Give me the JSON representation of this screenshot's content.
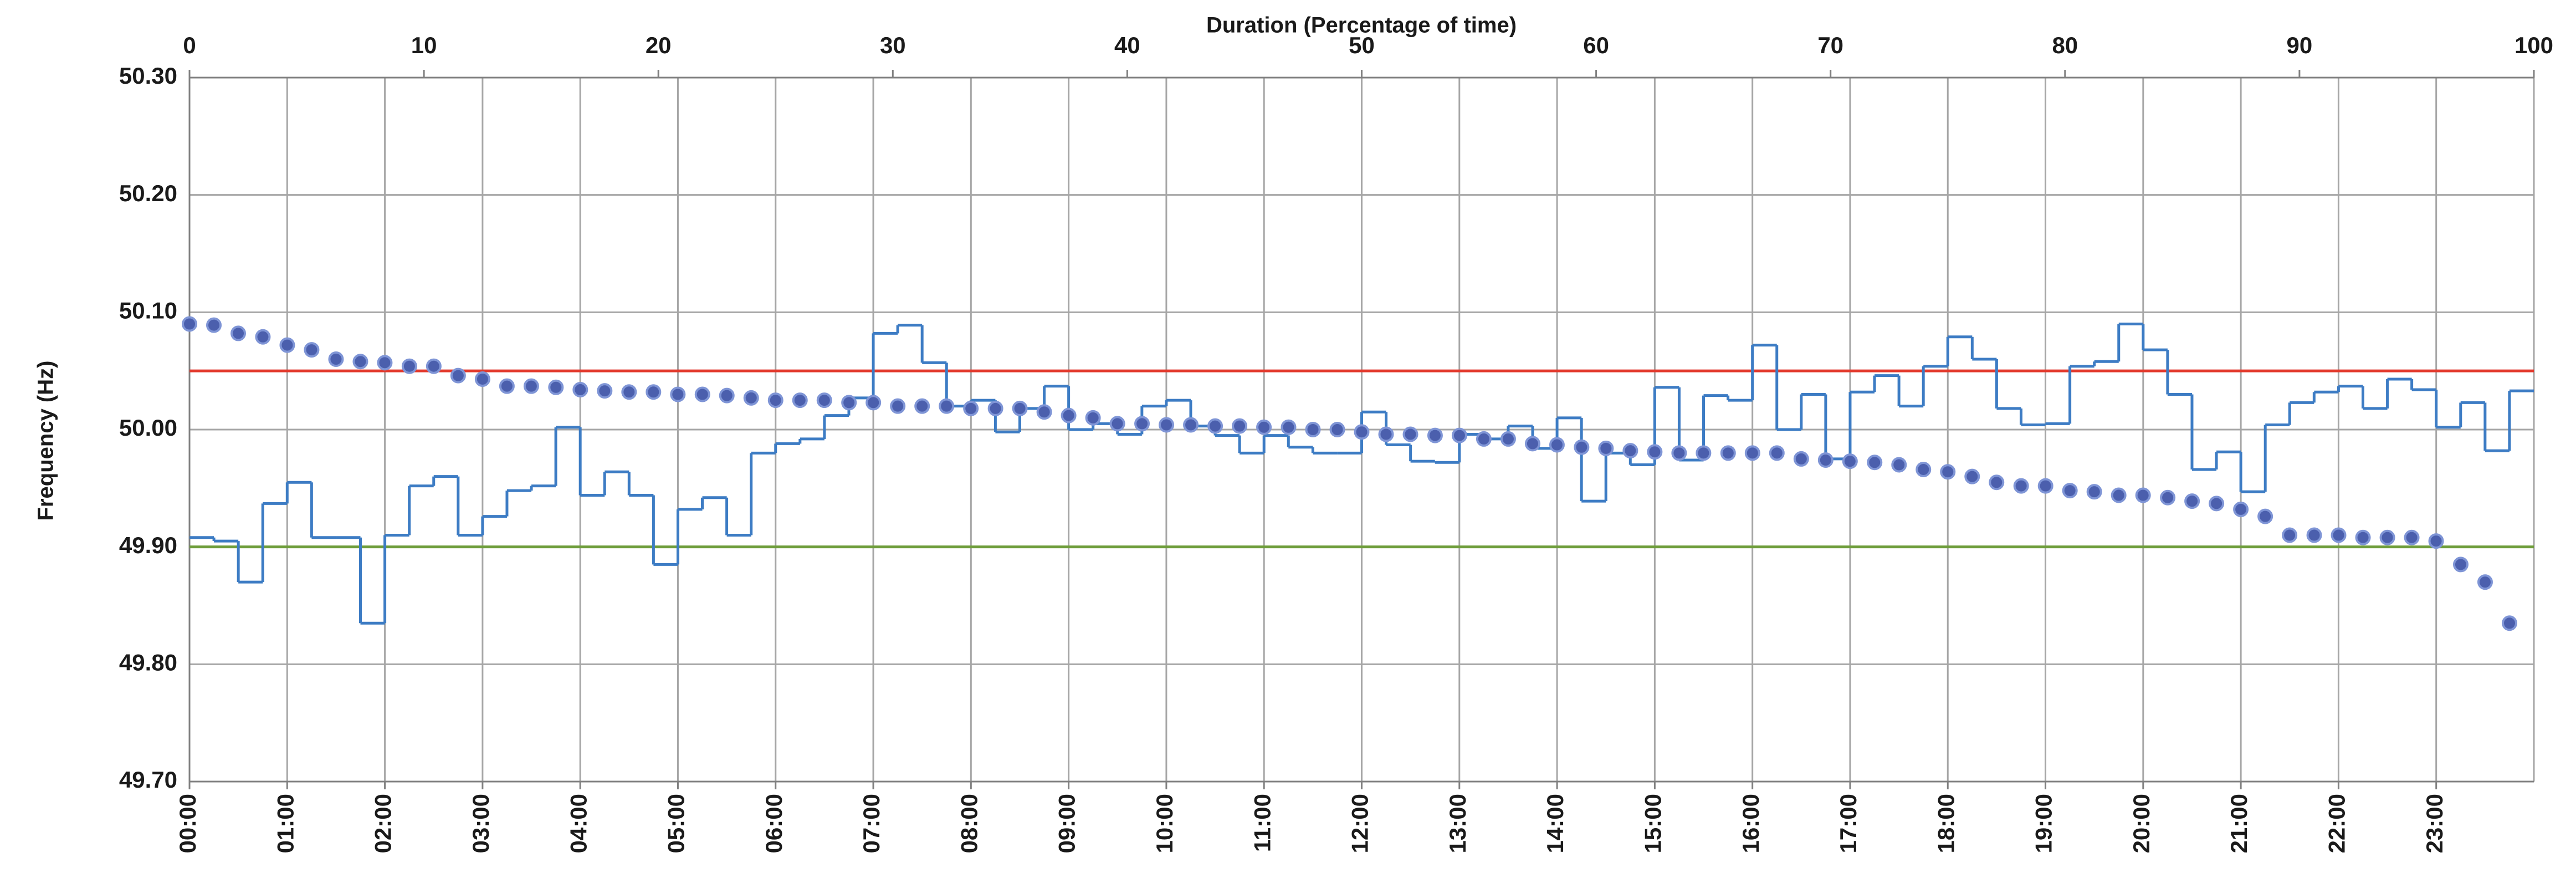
{
  "chart_data": [
    {
      "type": "line",
      "step": true,
      "ylabel": "Frequency (Hz)",
      "categories": [
        "00:00",
        null,
        null,
        null,
        "01:00",
        null,
        null,
        null,
        "02:00",
        null,
        null,
        null,
        "03:00",
        null,
        null,
        null,
        "04:00",
        null,
        null,
        null,
        "05:00",
        null,
        null,
        null,
        "06:00",
        null,
        null,
        null,
        "07:00",
        null,
        null,
        null,
        "08:00",
        null,
        null,
        null,
        "09:00",
        null,
        null,
        null,
        "10:00",
        null,
        null,
        null,
        "11:00",
        null,
        null,
        null,
        "12:00",
        null,
        null,
        null,
        "13:00",
        null,
        null,
        null,
        "14:00",
        null,
        null,
        null,
        "15:00",
        null,
        null,
        null,
        "16:00",
        null,
        null,
        null,
        "17:00",
        null,
        null,
        null,
        "18:00",
        null,
        null,
        null,
        "19:00",
        null,
        null,
        null,
        "20:00",
        null,
        null,
        null,
        "21:00",
        null,
        null,
        null,
        "22:00",
        null,
        null,
        null,
        "23:00",
        null,
        null,
        null
      ],
      "values": [
        49.908,
        49.905,
        49.87,
        49.937,
        49.955,
        49.908,
        49.908,
        49.835,
        49.91,
        49.952,
        49.96,
        49.91,
        49.926,
        49.948,
        49.952,
        50.002,
        49.944,
        49.964,
        49.944,
        49.885,
        49.932,
        49.942,
        49.91,
        49.98,
        49.988,
        49.992,
        50.012,
        50.027,
        50.082,
        50.089,
        50.057,
        50.02,
        50.025,
        49.998,
        50.018,
        50.037,
        50.0,
        50.005,
        49.996,
        50.02,
        50.025,
        50.003,
        49.995,
        49.98,
        49.995,
        49.985,
        49.98,
        49.98,
        50.015,
        49.987,
        49.973,
        49.972,
        49.996,
        49.992,
        50.003,
        49.984,
        50.01,
        49.939,
        49.98,
        49.97,
        50.036,
        49.974,
        50.029,
        50.025,
        50.072,
        50.0,
        50.03,
        49.975,
        50.032,
        50.046,
        50.02,
        50.054,
        50.079,
        50.06,
        50.018,
        50.004,
        50.005,
        50.054,
        50.058,
        50.09,
        50.068,
        50.03,
        49.966,
        49.981,
        49.947,
        50.004,
        50.023,
        50.032,
        50.037,
        50.018,
        50.043,
        50.034,
        50.002,
        50.023,
        49.982,
        50.033
      ],
      "color": "#3d7cc4",
      "ylim": [
        49.7,
        50.3
      ],
      "yticks": [
        {
          "value": 49.7,
          "label": "49.70"
        },
        {
          "value": 49.8,
          "label": "49.80"
        },
        {
          "value": 49.9,
          "label": "49.90"
        },
        {
          "value": 50.0,
          "label": "50.00"
        },
        {
          "value": 50.1,
          "label": "50.10"
        },
        {
          "value": 50.2,
          "label": "50.20"
        },
        {
          "value": 50.3,
          "label": "50.30"
        }
      ],
      "grid": true,
      "reference_lines": [
        {
          "value": 50.05,
          "color": "#e3392c"
        },
        {
          "value": 49.9,
          "color": "#6f9e3c"
        }
      ]
    },
    {
      "type": "scatter",
      "xlabel": "Duration (Percentage of time)",
      "x": [
        0,
        1.04,
        2.08,
        3.13,
        4.17,
        5.21,
        6.25,
        7.29,
        8.33,
        9.38,
        10.42,
        11.46,
        12.5,
        13.54,
        14.58,
        15.63,
        16.67,
        17.71,
        18.75,
        19.79,
        20.83,
        21.88,
        22.92,
        23.96,
        25,
        26.04,
        27.08,
        28.13,
        29.17,
        30.21,
        31.25,
        32.29,
        33.33,
        34.38,
        35.42,
        36.46,
        37.5,
        38.54,
        39.58,
        40.63,
        41.67,
        42.71,
        43.75,
        44.79,
        45.83,
        46.88,
        47.92,
        48.96,
        50,
        51.04,
        52.08,
        53.13,
        54.17,
        55.21,
        56.25,
        57.29,
        58.33,
        59.38,
        60.42,
        61.46,
        62.5,
        63.54,
        64.58,
        65.63,
        66.67,
        67.71,
        68.75,
        69.79,
        70.83,
        71.88,
        72.92,
        73.96,
        75,
        76.04,
        77.08,
        78.13,
        79.17,
        80.21,
        81.25,
        82.29,
        83.33,
        84.38,
        85.42,
        86.46,
        87.5,
        88.54,
        89.58,
        90.63,
        91.67,
        92.71,
        93.75,
        94.79,
        95.83,
        96.88,
        97.92,
        98.96
      ],
      "values": [
        50.09,
        50.089,
        50.082,
        50.079,
        50.072,
        50.068,
        50.06,
        50.058,
        50.057,
        50.054,
        50.054,
        50.046,
        50.043,
        50.037,
        50.037,
        50.036,
        50.034,
        50.033,
        50.032,
        50.032,
        50.03,
        50.03,
        50.029,
        50.027,
        50.025,
        50.025,
        50.025,
        50.023,
        50.023,
        50.02,
        50.02,
        50.02,
        50.018,
        50.018,
        50.018,
        50.015,
        50.012,
        50.01,
        50.005,
        50.005,
        50.004,
        50.004,
        50.003,
        50.003,
        50.002,
        50.002,
        50.0,
        50.0,
        49.998,
        49.996,
        49.996,
        49.995,
        49.995,
        49.992,
        49.992,
        49.988,
        49.987,
        49.985,
        49.984,
        49.982,
        49.981,
        49.98,
        49.98,
        49.98,
        49.98,
        49.98,
        49.975,
        49.974,
        49.973,
        49.972,
        49.97,
        49.966,
        49.964,
        49.96,
        49.955,
        49.952,
        49.952,
        49.948,
        49.947,
        49.944,
        49.944,
        49.942,
        49.939,
        49.937,
        49.932,
        49.926,
        49.91,
        49.91,
        49.91,
        49.908,
        49.908,
        49.908,
        49.905,
        49.885,
        49.87,
        49.835
      ],
      "color": "#4b5fad",
      "xlim": [
        0,
        100
      ],
      "xticks": [
        0,
        10,
        20,
        30,
        40,
        50,
        60,
        70,
        80,
        90,
        100
      ],
      "ylim": [
        49.7,
        50.3
      ]
    }
  ]
}
